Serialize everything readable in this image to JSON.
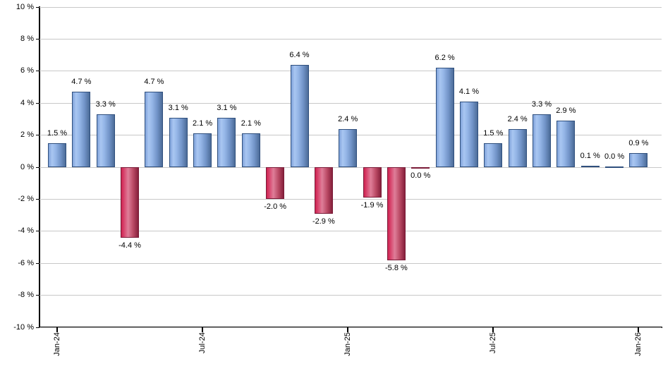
{
  "chart_data": {
    "type": "bar",
    "title": "",
    "ylabel": "",
    "xlabel": "",
    "unit": "%",
    "ylim": [
      -10,
      10
    ],
    "grid": true,
    "legend": "none",
    "y_ticks": [
      {
        "value": 10,
        "label": "10 %"
      },
      {
        "value": 8,
        "label": "8 %"
      },
      {
        "value": 6,
        "label": "6 %"
      },
      {
        "value": 4,
        "label": "4 %"
      },
      {
        "value": 2,
        "label": "2 %"
      },
      {
        "value": 0,
        "label": "0 %"
      },
      {
        "value": -2,
        "label": "-2 %"
      },
      {
        "value": -4,
        "label": "-4 %"
      },
      {
        "value": -6,
        "label": "-6 %"
      },
      {
        "value": -8,
        "label": "-8 %"
      },
      {
        "value": -10,
        "label": "-10 %"
      }
    ],
    "x_ticks": [
      {
        "month_index": 0,
        "label": "Jan-24"
      },
      {
        "month_index": 6,
        "label": "Jul-24"
      },
      {
        "month_index": 12,
        "label": "Jan-25"
      },
      {
        "month_index": 18,
        "label": "Jul-25"
      },
      {
        "month_index": 24,
        "label": "Jan-26"
      }
    ],
    "bars": [
      {
        "value": 1.5,
        "label": "1.5 %",
        "dir": "up"
      },
      {
        "value": 4.7,
        "label": "4.7 %",
        "dir": "up"
      },
      {
        "value": 3.3,
        "label": "3.3 %",
        "dir": "up"
      },
      {
        "value": -4.4,
        "label": "-4.4 %",
        "dir": "down"
      },
      {
        "value": 4.7,
        "label": "4.7 %",
        "dir": "up"
      },
      {
        "value": 3.1,
        "label": "3.1 %",
        "dir": "up"
      },
      {
        "value": 2.1,
        "label": "2.1 %",
        "dir": "up"
      },
      {
        "value": 3.1,
        "label": "3.1 %",
        "dir": "up"
      },
      {
        "value": 2.1,
        "label": "2.1 %",
        "dir": "up"
      },
      {
        "value": -2.0,
        "label": "-2.0 %",
        "dir": "down"
      },
      {
        "value": 6.4,
        "label": "6.4 %",
        "dir": "up"
      },
      {
        "value": -2.9,
        "label": "-2.9 %",
        "dir": "down"
      },
      {
        "value": 2.4,
        "label": "2.4 %",
        "dir": "up"
      },
      {
        "value": -1.9,
        "label": "-1.9 %",
        "dir": "down"
      },
      {
        "value": -5.8,
        "label": "-5.8 %",
        "dir": "down"
      },
      {
        "value": 0.0,
        "label": "0.0 %",
        "dir": "down"
      },
      {
        "value": 6.2,
        "label": "6.2 %",
        "dir": "up"
      },
      {
        "value": 4.1,
        "label": "4.1 %",
        "dir": "up"
      },
      {
        "value": 1.5,
        "label": "1.5 %",
        "dir": "up"
      },
      {
        "value": 2.4,
        "label": "2.4 %",
        "dir": "up"
      },
      {
        "value": 3.3,
        "label": "3.3 %",
        "dir": "up"
      },
      {
        "value": 2.9,
        "label": "2.9 %",
        "dir": "up"
      },
      {
        "value": 0.1,
        "label": "0.1 %",
        "dir": "up"
      },
      {
        "value": 0.0,
        "label": "0.0 %",
        "dir": "up"
      },
      {
        "value": 0.9,
        "label": "0.9 %",
        "dir": "up"
      }
    ]
  },
  "colors": {
    "background": "#ffffff",
    "gridline": "#c8c8c8",
    "axis": "#000000",
    "label_text": "#000000",
    "positive_stops": [
      "#7FA2D9",
      "#A9C6F2",
      "#96B7E8",
      "#7294C8",
      "#4C6C98"
    ],
    "positive_border": "#2F4F7D",
    "negative_stops": [
      "#CE2150",
      "#D94E74",
      "#DF7E99",
      "#BA4A65",
      "#86203B"
    ],
    "negative_border": "#7A1B38"
  }
}
